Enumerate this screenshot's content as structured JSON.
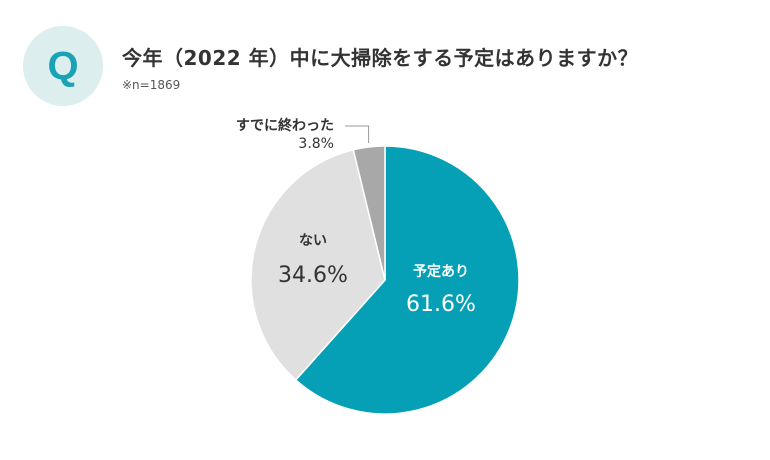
{
  "question": {
    "badge": "Q",
    "title": "今年（2022 年）中に大掃除をする予定はありますか？",
    "note": "※n=1869"
  },
  "colors": {
    "accent": "#1aa3b4",
    "badge_bg": "#dceeee",
    "planned": "#06a0b6",
    "not_planned": "#e0e0e0",
    "already_done": "#a8a8a8"
  },
  "chart_data": {
    "type": "pie",
    "unit": "%",
    "slices": [
      {
        "name": "予定あり",
        "value": 61.6,
        "label": "61.6%",
        "color": "#06a0b6"
      },
      {
        "name": "ない",
        "value": 34.6,
        "label": "34.6%",
        "color": "#e0e0e0"
      },
      {
        "name": "すでに終わった",
        "value": 3.8,
        "label": "3.8%",
        "color": "#a8a8a8"
      }
    ],
    "start": "12 o'clock",
    "direction": "clockwise",
    "legend": "none"
  }
}
